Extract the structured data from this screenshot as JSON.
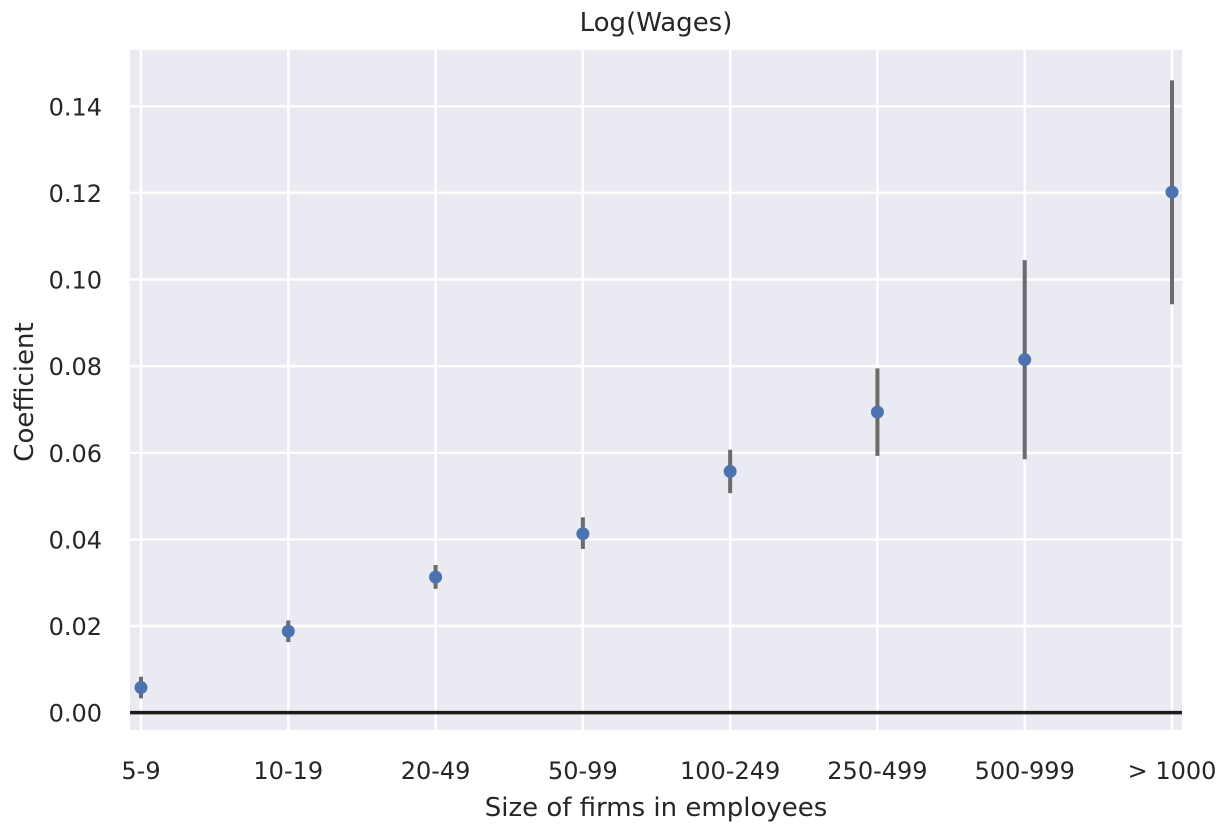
{
  "chart_data": {
    "type": "scatter",
    "title": "Log(Wages)",
    "xlabel": "Size of firms in employees",
    "ylabel": "Coefficient",
    "categories": [
      "5-9",
      "10-19",
      "20-49",
      "50-99",
      "100-249",
      "250-499",
      "500-999",
      "> 1000"
    ],
    "values": [
      0.0058,
      0.0188,
      0.0313,
      0.0413,
      0.0557,
      0.0694,
      0.0815,
      0.1202
    ],
    "ci_low": [
      0.0033,
      0.0163,
      0.0286,
      0.0378,
      0.0507,
      0.0593,
      0.0585,
      0.0943
    ],
    "ci_high": [
      0.0083,
      0.0213,
      0.0341,
      0.0451,
      0.0607,
      0.0795,
      0.1045,
      0.146
    ],
    "ylim": [
      -0.004,
      0.153
    ],
    "yticks": [
      0.0,
      0.02,
      0.04,
      0.06,
      0.08,
      0.1,
      0.12,
      0.14
    ],
    "ytick_labels": [
      "0.00",
      "0.02",
      "0.04",
      "0.06",
      "0.08",
      "0.10",
      "0.12",
      "0.14"
    ],
    "reference_line_y": 0,
    "grid": true,
    "style": {
      "background": "#eaeaf2",
      "grid_color": "#ffffff",
      "point_color": "#4c72b0",
      "errorbar_color": "#6b6b6b",
      "reference_line_color": "#1a1a1a"
    }
  }
}
